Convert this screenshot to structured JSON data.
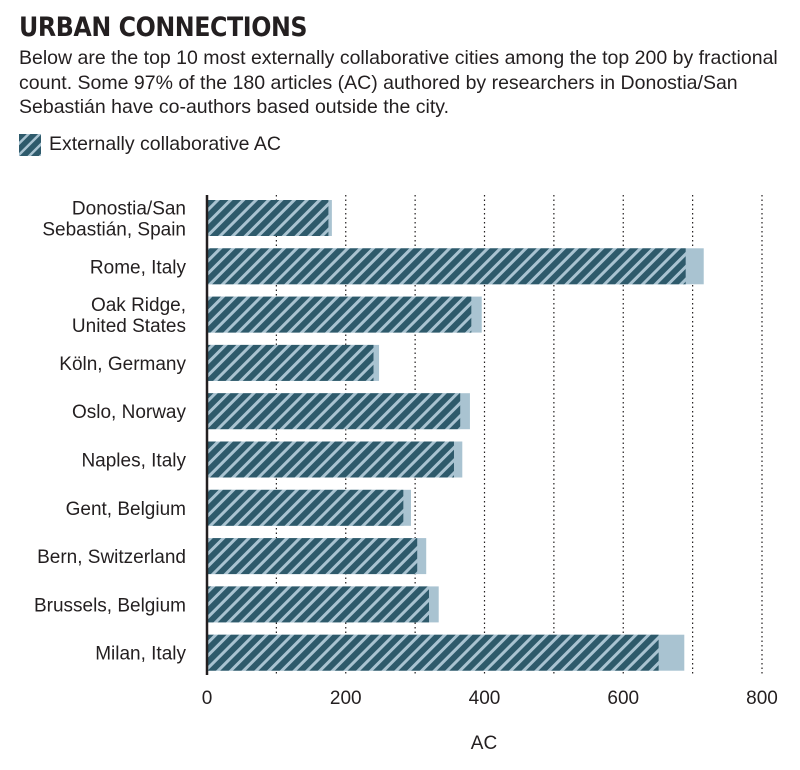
{
  "header": {
    "title": "URBAN CONNECTIONS",
    "description": "Below are the top 10 most externally collaborative cities among the top 200 by fractional count. Some 97% of the 180 articles (AC) authored by researchers in Donostia/San Sebastián have co-authors based outside the city."
  },
  "legend": {
    "label": "Externally collaborative AC"
  },
  "colors": {
    "hatch_dark": "#2e5a6b",
    "hatch_light": "#a9c3d1",
    "total_bar": "#a9c3d1",
    "grid": "#231f20"
  },
  "chart_data": {
    "type": "bar",
    "orientation": "horizontal",
    "categories": [
      [
        "Donostia/San",
        "Sebastián, Spain"
      ],
      [
        "Rome, Italy"
      ],
      [
        "Oak Ridge,",
        "United States"
      ],
      [
        "Köln, Germany"
      ],
      [
        "Oslo, Norway"
      ],
      [
        "Naples, Italy"
      ],
      [
        "Gent, Belgium"
      ],
      [
        "Bern, Switzerland"
      ],
      [
        "Brussels, Belgium"
      ],
      [
        "Milan, Italy"
      ]
    ],
    "series": [
      {
        "values": [
          180,
          716,
          396,
          248,
          379,
          368,
          294,
          316,
          334,
          688
        ]
      },
      {
        "name": "Externally collaborative AC",
        "values": [
          175,
          690,
          381,
          240,
          365,
          356,
          283,
          303,
          320,
          651
        ]
      }
    ],
    "xlabel": "AC",
    "xlim": [
      0,
      800
    ],
    "xticks": [
      0,
      200,
      400,
      600,
      800
    ],
    "grid_values": [
      100,
      200,
      300,
      400,
      500,
      600,
      700,
      800
    ],
    "legend_position": "top-left"
  }
}
